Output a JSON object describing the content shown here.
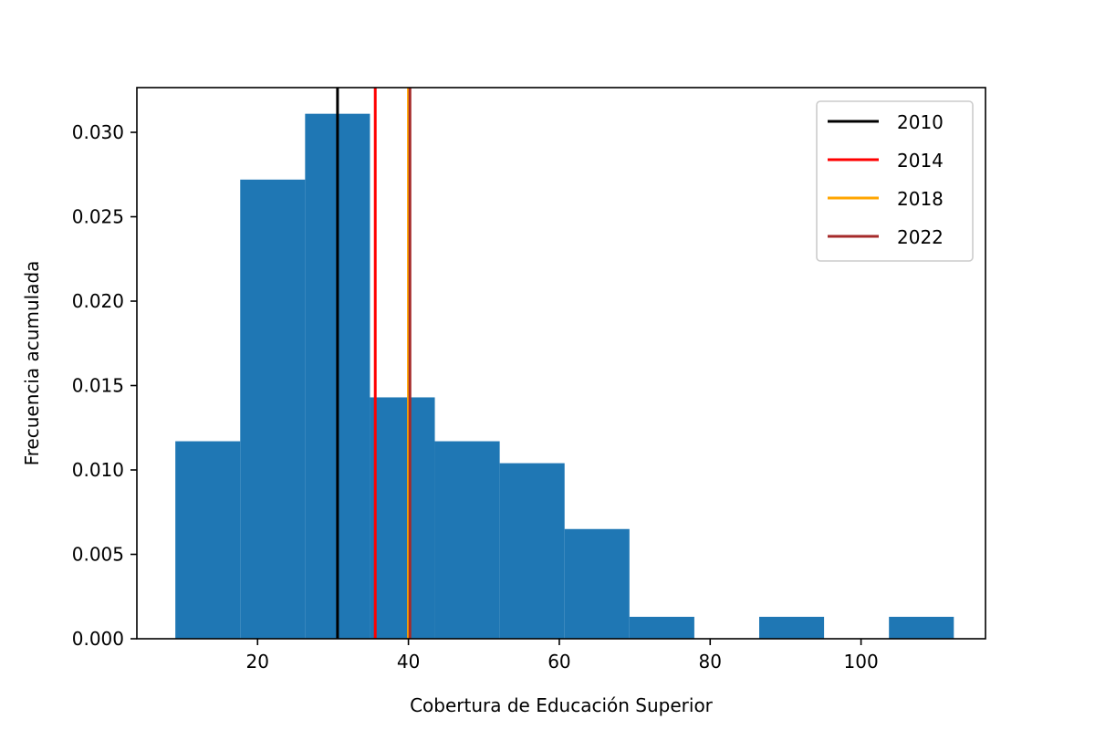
{
  "chart_data": {
    "type": "bar",
    "title": "",
    "xlabel": "Cobertura de Educación Superior",
    "ylabel": "Frecuencia acumulada",
    "xlim": [
      4,
      116.5
    ],
    "ylim": [
      0,
      0.03265
    ],
    "xticks": [
      20,
      40,
      60,
      80,
      100
    ],
    "xtick_labels": [
      "20",
      "40",
      "60",
      "80",
      "100"
    ],
    "yticks": [
      0,
      0.005,
      0.01,
      0.015,
      0.02,
      0.025,
      0.03
    ],
    "ytick_labels": [
      "0.000",
      "0.005",
      "0.010",
      "0.015",
      "0.020",
      "0.025",
      "0.030"
    ],
    "grid": false,
    "legend_position": "top-right",
    "bar_color": "#1f77b4",
    "bins": [
      {
        "start": 9.1,
        "end": 17.7,
        "value": 0.0117
      },
      {
        "start": 17.7,
        "end": 26.3,
        "value": 0.0272
      },
      {
        "start": 26.3,
        "end": 34.9,
        "value": 0.0311
      },
      {
        "start": 34.9,
        "end": 43.5,
        "value": 0.0143
      },
      {
        "start": 43.5,
        "end": 52.1,
        "value": 0.0117
      },
      {
        "start": 52.1,
        "end": 60.7,
        "value": 0.0104
      },
      {
        "start": 60.7,
        "end": 69.3,
        "value": 0.0065
      },
      {
        "start": 69.3,
        "end": 77.9,
        "value": 0.0013
      },
      {
        "start": 77.9,
        "end": 86.5,
        "value": 0
      },
      {
        "start": 86.5,
        "end": 95.1,
        "value": 0.0013
      },
      {
        "start": 95.1,
        "end": 103.7,
        "value": 0
      },
      {
        "start": 103.7,
        "end": 112.3,
        "value": 0.0013
      }
    ],
    "vlines": [
      {
        "name": "2010",
        "x": 30.6,
        "color": "#000000"
      },
      {
        "name": "2014",
        "x": 35.6,
        "color": "#ff0000"
      },
      {
        "name": "2018",
        "x": 40.0,
        "color": "#ffa500"
      },
      {
        "name": "2022",
        "x": 40.2,
        "color": "#a52a2a"
      }
    ]
  }
}
